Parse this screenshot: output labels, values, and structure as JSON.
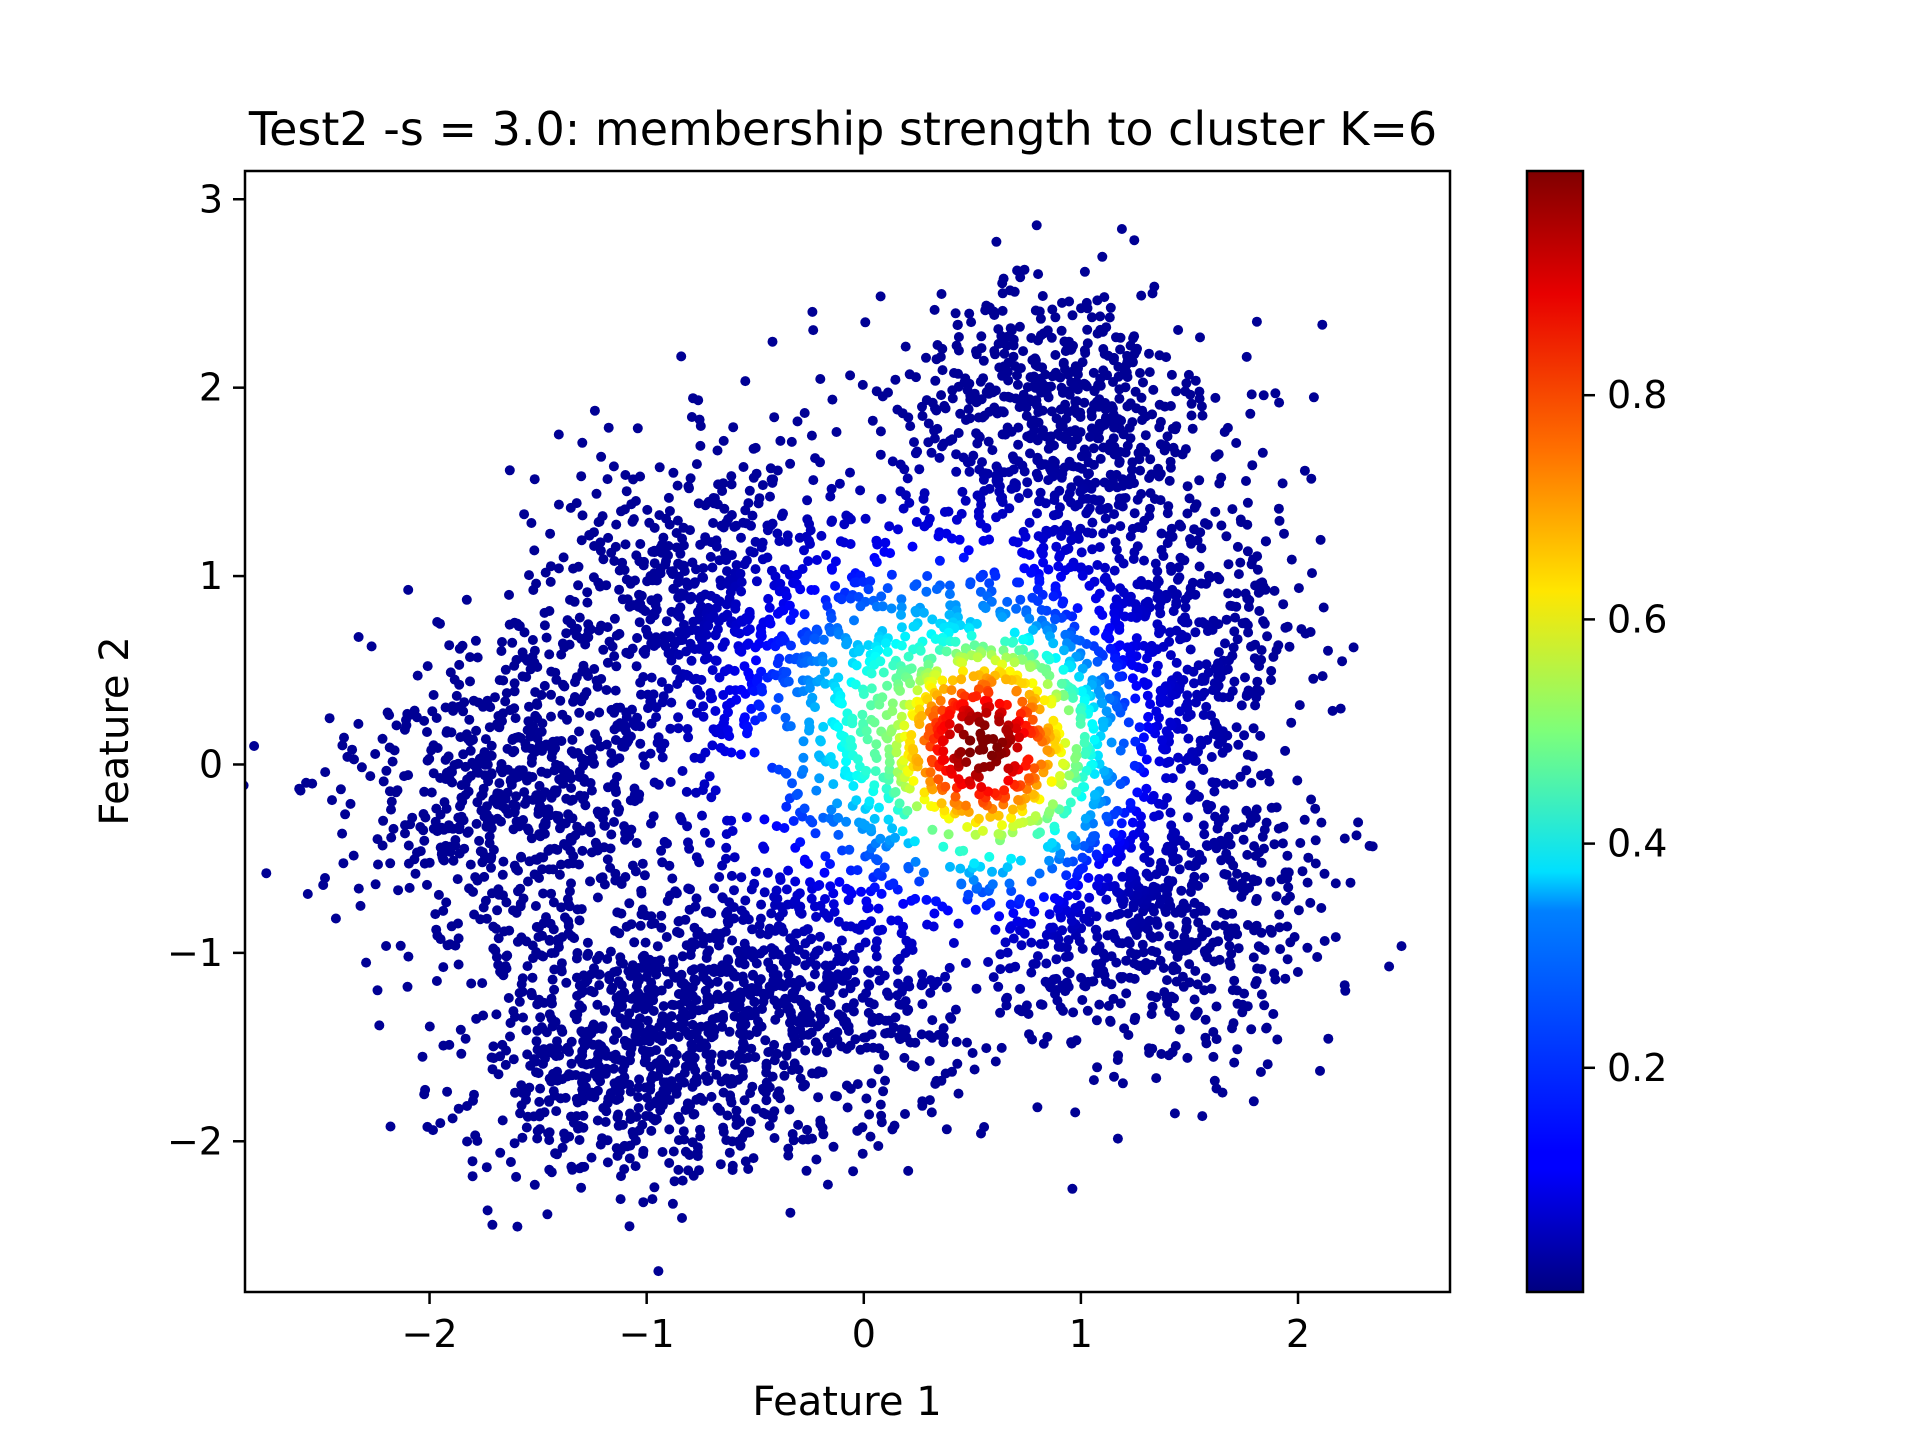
{
  "chart_data": {
    "type": "scatter",
    "title": "Test2 -s = 3.0: membership strength to cluster K=6",
    "xlabel": "Feature 1",
    "ylabel": "Feature 2",
    "xlim": [
      -2.85,
      2.7
    ],
    "ylim": [
      -2.8,
      3.15
    ],
    "xticks": [
      -2,
      -1,
      0,
      1,
      2
    ],
    "yticks": [
      -2,
      -1,
      0,
      1,
      2,
      3
    ],
    "xtick_labels": [
      "−2",
      "−1",
      "0",
      "1",
      "2"
    ],
    "ytick_labels": [
      "−2",
      "−1",
      "0",
      "1",
      "2",
      "3"
    ],
    "grid": false,
    "colormap": "jet",
    "colorbar": {
      "range": [
        0,
        1
      ],
      "ticks": [
        0.2,
        0.4,
        0.6,
        0.8
      ],
      "tick_labels": [
        "0.2",
        "0.4",
        "0.6",
        "0.8"
      ]
    },
    "clusters": [
      {
        "cx": 0.35,
        "cy": 0.2,
        "sx": 0.4,
        "sy": 0.4,
        "membership": "high"
      },
      {
        "cx": -0.7,
        "cy": 0.85,
        "sx": 0.42,
        "sy": 0.42,
        "membership": "low"
      },
      {
        "cx": 0.85,
        "cy": 1.8,
        "sx": 0.4,
        "sy": 0.38,
        "membership": "low"
      },
      {
        "cx": -1.6,
        "cy": -0.15,
        "sx": 0.38,
        "sy": 0.42,
        "membership": "low"
      },
      {
        "cx": 1.3,
        "cy": 0.6,
        "sx": 0.38,
        "sy": 0.42,
        "membership": "low"
      },
      {
        "cx": -1.1,
        "cy": -1.5,
        "sx": 0.4,
        "sy": 0.35,
        "membership": "low"
      },
      {
        "cx": -0.3,
        "cy": -1.2,
        "sx": 0.4,
        "sy": 0.4,
        "membership": "low"
      },
      {
        "cx": 1.3,
        "cy": -0.8,
        "sx": 0.4,
        "sy": 0.4,
        "membership": "low"
      }
    ],
    "peak_membership": {
      "x": 0.55,
      "y": 0.1,
      "value": 1.0
    }
  }
}
